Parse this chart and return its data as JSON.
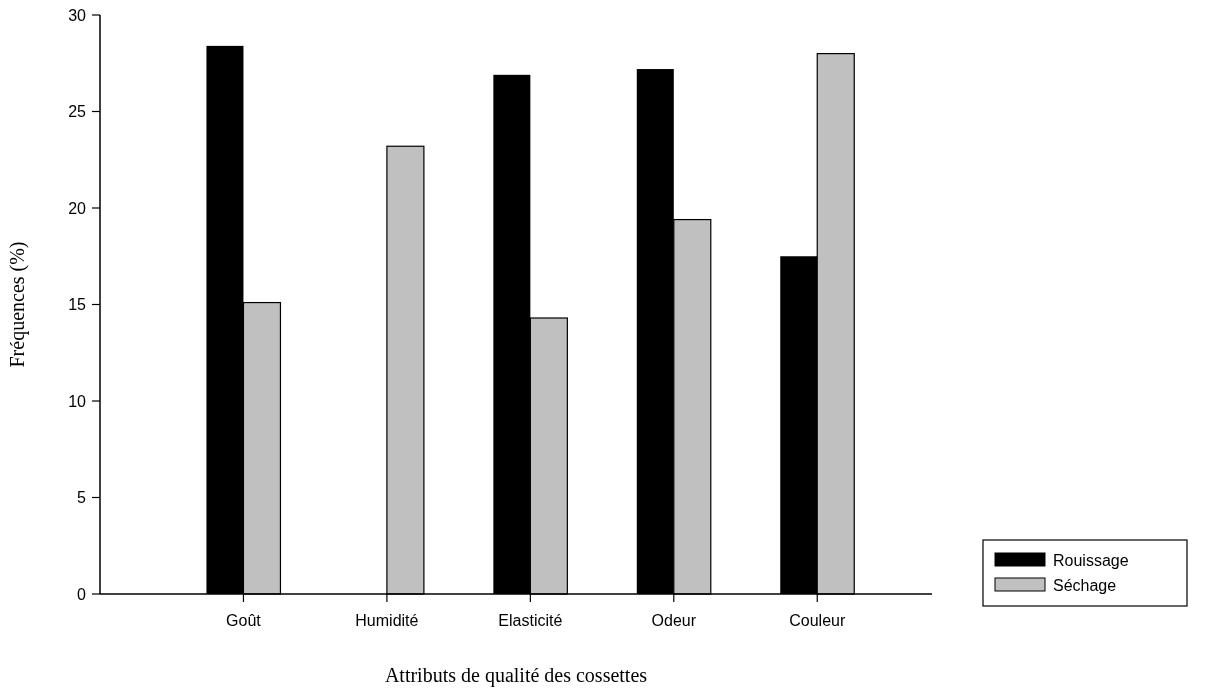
{
  "chart_data": {
    "type": "bar",
    "xlabel": "Attributs de qualité des cossettes",
    "ylabel": "Fréquences (%)",
    "categories": [
      "Goût",
      "Humidité",
      "Elasticité",
      "Odeur",
      "Couleur"
    ],
    "series": [
      {
        "name": "Rouissage",
        "color": "#000000",
        "values": [
          28.4,
          0,
          26.9,
          27.2,
          17.5
        ]
      },
      {
        "name": "Séchage",
        "color": "#c0c0c0",
        "values": [
          15.1,
          23.2,
          14.3,
          19.4,
          28.0
        ]
      }
    ],
    "ylim": [
      0,
      30
    ],
    "yticks": [
      0,
      5,
      10,
      15,
      20,
      25,
      30
    ],
    "legend": "right",
    "grid": false
  }
}
